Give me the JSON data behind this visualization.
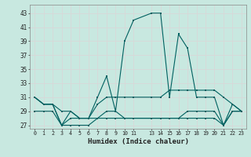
{
  "xlabel": "Humidex (Indice chaleur)",
  "bg_color": "#c8e8e0",
  "grid_color": "#d8d8d8",
  "line_color": "#006060",
  "ylim_bottom": 26.5,
  "ylim_top": 44.2,
  "yticks": [
    27,
    29,
    31,
    33,
    35,
    37,
    39,
    41,
    43
  ],
  "xlim": [
    -0.5,
    23.5
  ],
  "xtick_positions": [
    0,
    1,
    2,
    3,
    4,
    5,
    6,
    7,
    8,
    9,
    10,
    11,
    13,
    14,
    15,
    16,
    17,
    18,
    19,
    20,
    21,
    22,
    23
  ],
  "xtick_labels": [
    "0",
    "1",
    "2",
    "3",
    "4",
    "5",
    "6",
    "7",
    "8",
    "9",
    "10",
    "11",
    "13",
    "14",
    "15",
    "16",
    "17",
    "18",
    "19",
    "20",
    "21",
    "22",
    "23"
  ],
  "line1_x": [
    0,
    1,
    2,
    3,
    4,
    5,
    6,
    7,
    8,
    9,
    10,
    11,
    13,
    14,
    15,
    16,
    17,
    18,
    19,
    20,
    21,
    22,
    23
  ],
  "line1_y": [
    31,
    30,
    30,
    27,
    29,
    28,
    28,
    31,
    34,
    29,
    39,
    42,
    43,
    43,
    31,
    40,
    38,
    31,
    31,
    31,
    27,
    30,
    29
  ],
  "line2_x": [
    0,
    1,
    2,
    3,
    4,
    5,
    6,
    7,
    8,
    9,
    10,
    11,
    13,
    14,
    15,
    16,
    17,
    18,
    19,
    20,
    21,
    22,
    23
  ],
  "line2_y": [
    31,
    30,
    30,
    29,
    29,
    28,
    28,
    30,
    31,
    31,
    31,
    31,
    31,
    31,
    32,
    32,
    32,
    32,
    32,
    32,
    31,
    30,
    29
  ],
  "line3_x": [
    0,
    1,
    2,
    3,
    4,
    5,
    6,
    7,
    8,
    9,
    10,
    11,
    13,
    14,
    15,
    16,
    17,
    18,
    19,
    20,
    21,
    22,
    23
  ],
  "line3_y": [
    31,
    30,
    30,
    27,
    28,
    28,
    28,
    28,
    29,
    29,
    28,
    28,
    28,
    28,
    28,
    28,
    29,
    29,
    29,
    29,
    27,
    29,
    29
  ],
  "line4_x": [
    0,
    1,
    2,
    3,
    4,
    5,
    6,
    7,
    8,
    9,
    10,
    11,
    13,
    14,
    15,
    16,
    17,
    18,
    19,
    20,
    21,
    22,
    23
  ],
  "line4_y": [
    29,
    29,
    29,
    27,
    27,
    27,
    27,
    28,
    28,
    28,
    28,
    28,
    28,
    28,
    28,
    28,
    28,
    28,
    28,
    28,
    27,
    29,
    29
  ]
}
